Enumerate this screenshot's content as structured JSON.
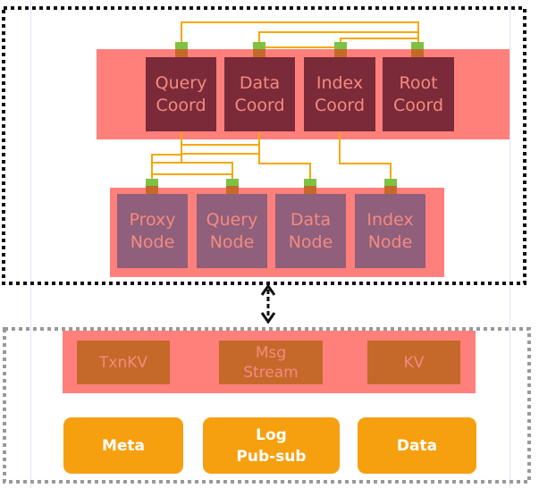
{
  "coordinators": [
    "Query\nCoord",
    "Data\nCoord",
    "Index\nCoord",
    "Root\nCoord"
  ],
  "nodes": [
    "Proxy\nNode",
    "Query\nNode",
    "Data\nNode",
    "Index\nNode"
  ],
  "storage_services": [
    "TxnKV",
    "Msg\nStream",
    "KV"
  ],
  "storage_types": [
    "Meta",
    "Log\nPub-sub",
    "Data"
  ],
  "colors": {
    "panel": "#ff807b",
    "coord": "#7a2a38",
    "node": "#8f5f7b",
    "storage": "#c4692a",
    "storage_type": "#f6a00f",
    "connector": "#f6a800",
    "port_top": "#7dc242",
    "port_bottom": "#c4692a"
  }
}
